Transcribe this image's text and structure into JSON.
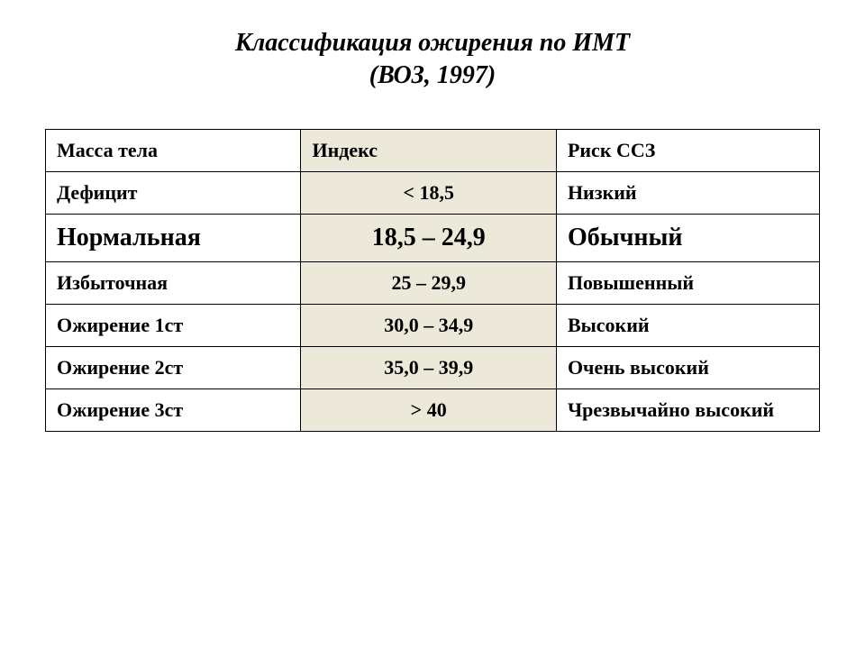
{
  "title": {
    "line1": "Классификация ожирения по ИМТ",
    "line2": "(ВОЗ, 1997)",
    "fontsize": 28,
    "font_style": "italic",
    "font_weight": "bold",
    "color": "#000000"
  },
  "table": {
    "border_color": "#000000",
    "background_color": "#ffffff",
    "index_column_bg": "#ece8da",
    "columns": [
      {
        "key": "mass",
        "width_pct": 33,
        "align": "left"
      },
      {
        "key": "index",
        "width_pct": 33,
        "align": "center"
      },
      {
        "key": "risk",
        "width_pct": 34,
        "align": "left"
      }
    ],
    "header": {
      "mass": "Масса тела",
      "index": "Индекс",
      "risk": "Риск ССЗ",
      "fontsize": 22
    },
    "rows": [
      {
        "mass": "Дефицит",
        "index": "< 18,5",
        "risk": "Низкий",
        "emphasis": false,
        "fontsize": 22
      },
      {
        "mass": "Нормальная",
        "index": "18,5 – 24,9",
        "risk": "Обычный",
        "emphasis": true,
        "fontsize": 28
      },
      {
        "mass": "Избыточная",
        "index": "25 – 29,9",
        "risk": "Повышенный",
        "emphasis": false,
        "fontsize": 22
      },
      {
        "mass": "Ожирение 1ст",
        "index": "30,0 – 34,9",
        "risk": "Высокий",
        "emphasis": false,
        "fontsize": 22
      },
      {
        "mass": "Ожирение 2ст",
        "index": "35,0 – 39,9",
        "risk": "Очень высокий",
        "emphasis": false,
        "fontsize": 22
      },
      {
        "mass": "Ожирение 3ст",
        "index": "> 40",
        "risk": "Чрезвычайно высокий",
        "emphasis": false,
        "fontsize": 22
      }
    ]
  }
}
